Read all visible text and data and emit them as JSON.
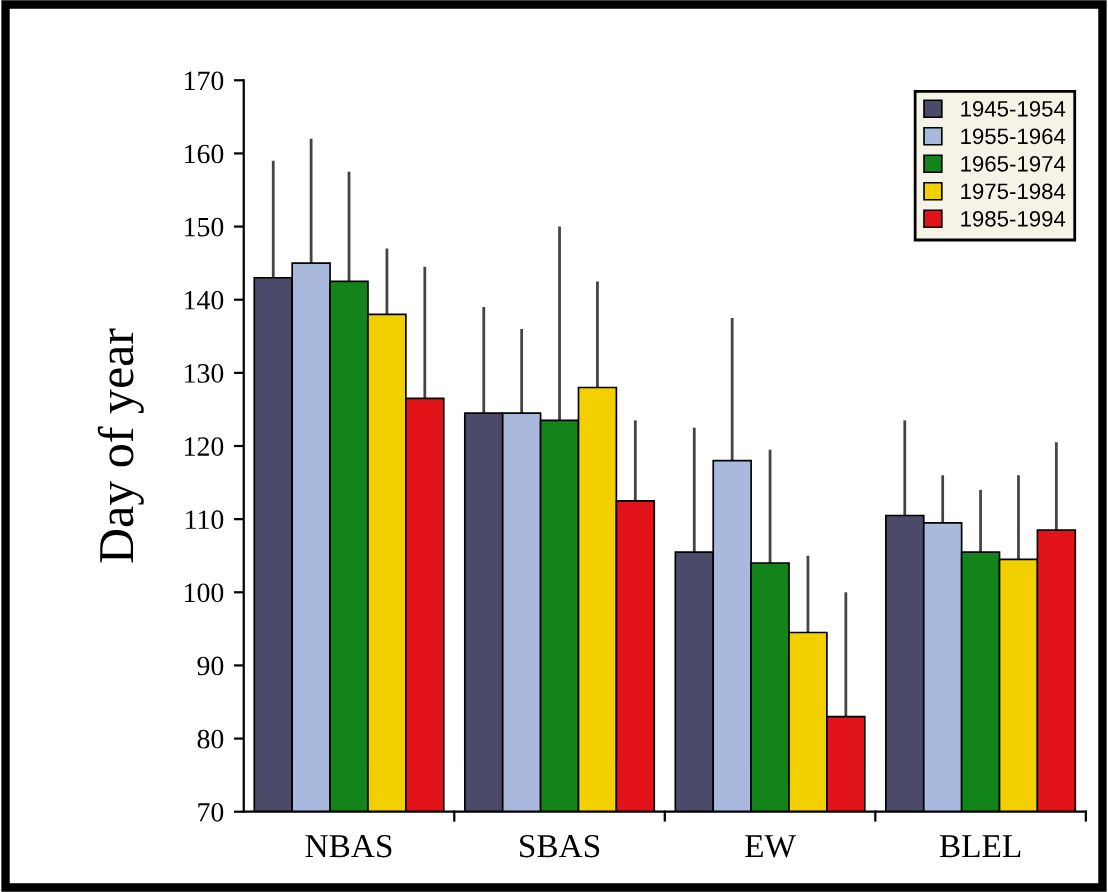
{
  "chart_data": {
    "type": "bar",
    "ylabel": "Day of year",
    "categories": [
      "NBAS",
      "SBAS",
      "EW",
      "BLEL"
    ],
    "ylim": [
      70,
      170
    ],
    "yticks": [
      70,
      80,
      90,
      100,
      110,
      120,
      130,
      140,
      150,
      160,
      170
    ],
    "grid": false,
    "legend": "top right",
    "series": [
      {
        "name": "1945-1954",
        "color": "#4b4a68",
        "values": [
          143,
          124.5,
          105.5,
          110.5
        ],
        "errors": [
          [
            143,
            159
          ],
          [
            124.5,
            139
          ],
          [
            105.5,
            122.5
          ],
          [
            110.5,
            123.5
          ]
        ]
      },
      {
        "name": "1955-1964",
        "color": "#a9b9de",
        "values": [
          145,
          124.5,
          118,
          109.5
        ],
        "errors": [
          [
            145,
            162
          ],
          [
            124.5,
            136
          ],
          [
            118,
            137.5
          ],
          [
            109.5,
            116
          ]
        ]
      },
      {
        "name": "1965-1974",
        "color": "#12841a",
        "values": [
          142.5,
          123.5,
          104,
          105.5
        ],
        "errors": [
          [
            142.5,
            157.5
          ],
          [
            123.5,
            150
          ],
          [
            104,
            119.5
          ],
          [
            105.5,
            114
          ]
        ]
      },
      {
        "name": "1975-1984",
        "color": "#f2d000",
        "values": [
          138,
          128,
          94.5,
          104.5
        ],
        "errors": [
          [
            138,
            147
          ],
          [
            128,
            142.5
          ],
          [
            94.5,
            105
          ],
          [
            104.5,
            116
          ]
        ]
      },
      {
        "name": "1985-1994",
        "color": "#e2141a",
        "values": [
          126.5,
          112.5,
          83,
          108.5
        ],
        "errors": [
          [
            126.5,
            144.5
          ],
          [
            112.5,
            123.5
          ],
          [
            83,
            100
          ],
          [
            108.5,
            120.5
          ]
        ]
      }
    ]
  }
}
